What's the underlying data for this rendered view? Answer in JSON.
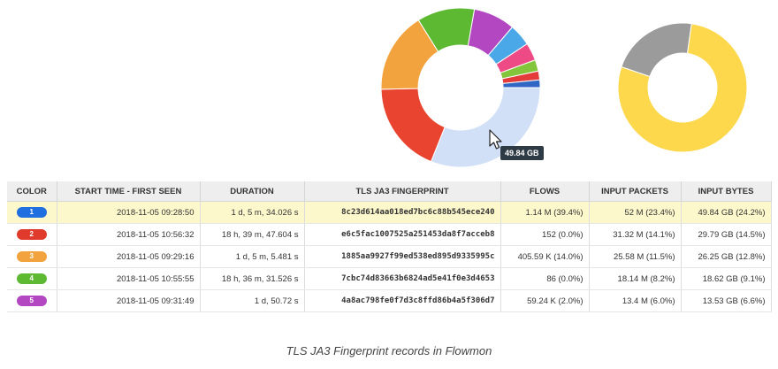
{
  "tooltip": "49.84 GB",
  "charts": {
    "primary": {
      "segments": [
        {
          "name": "1",
          "color": "#d2e0f7",
          "value": 24.2
        },
        {
          "name": "2",
          "color": "#e8442f",
          "value": 14.5
        },
        {
          "name": "3",
          "color": "#f2a33d",
          "value": 12.8
        },
        {
          "name": "4",
          "color": "#5db832",
          "value": 9.1
        },
        {
          "name": "5",
          "color": "#b347c2",
          "value": 6.6
        },
        {
          "name": "6",
          "color": "#4aa8e8",
          "value": 3.5
        },
        {
          "name": "7",
          "color": "#ee4a85",
          "value": 2.8
        },
        {
          "name": "8",
          "color": "#84c63b",
          "value": 1.8
        },
        {
          "name": "9",
          "color": "#e43b3b",
          "value": 1.4
        },
        {
          "name": "10",
          "color": "#3066c4",
          "value": 1.2
        }
      ]
    },
    "secondary": {
      "segments": [
        {
          "name": "a",
          "color": "#fdd84c",
          "value": 78
        },
        {
          "name": "b",
          "color": "#9b9b9b",
          "value": 22
        }
      ]
    }
  },
  "table": {
    "headers": [
      "COLOR",
      "START TIME - FIRST SEEN",
      "DURATION",
      "TLS JA3 FINGERPRINT",
      "FLOWS",
      "INPUT PACKETS",
      "INPUT BYTES"
    ],
    "rows": [
      {
        "id": "1",
        "color": "#1f6fe0",
        "start": "2018-11-05 09:28:50",
        "duration": "1 d, 5 m, 34.026 s",
        "fingerprint": "8c23d614aa018ed7bc6c88b545ece240",
        "flows": "1.14 M (39.4%)",
        "packets": "52 M (23.4%)",
        "bytes": "49.84 GB (24.2%)"
      },
      {
        "id": "2",
        "color": "#e03a2d",
        "start": "2018-11-05 10:56:32",
        "duration": "18 h, 39 m, 47.604 s",
        "fingerprint": "e6c5fac1007525a251453da8f7acceb8",
        "flows": "152 (0.0%)",
        "packets": "31.32 M (14.1%)",
        "bytes": "29.79 GB (14.5%)"
      },
      {
        "id": "3",
        "color": "#f2a33d",
        "start": "2018-11-05 09:29:16",
        "duration": "1 d, 5 m, 5.481 s",
        "fingerprint": "1885aa9927f99ed538ed895d9335995c",
        "flows": "405.59 K (14.0%)",
        "packets": "25.58 M (11.5%)",
        "bytes": "26.25 GB (12.8%)"
      },
      {
        "id": "4",
        "color": "#5db832",
        "start": "2018-11-05 10:55:55",
        "duration": "18 h, 36 m, 31.526 s",
        "fingerprint": "7cbc74d83663b6824ad5e41f0e3d4653",
        "flows": "86 (0.0%)",
        "packets": "18.14 M (8.2%)",
        "bytes": "18.62 GB (9.1%)"
      },
      {
        "id": "5",
        "color": "#b347c2",
        "start": "2018-11-05 09:31:49",
        "duration": "1 d, 50.72 s",
        "fingerprint": "4a8ac798fe0f7d3c8ffd86b4a5f306d7",
        "flows": "59.24 K (2.0%)",
        "packets": "13.4 M (6.0%)",
        "bytes": "13.53 GB (6.6%)"
      }
    ]
  },
  "caption": "TLS JA3 Fingerprint records in Flowmon"
}
